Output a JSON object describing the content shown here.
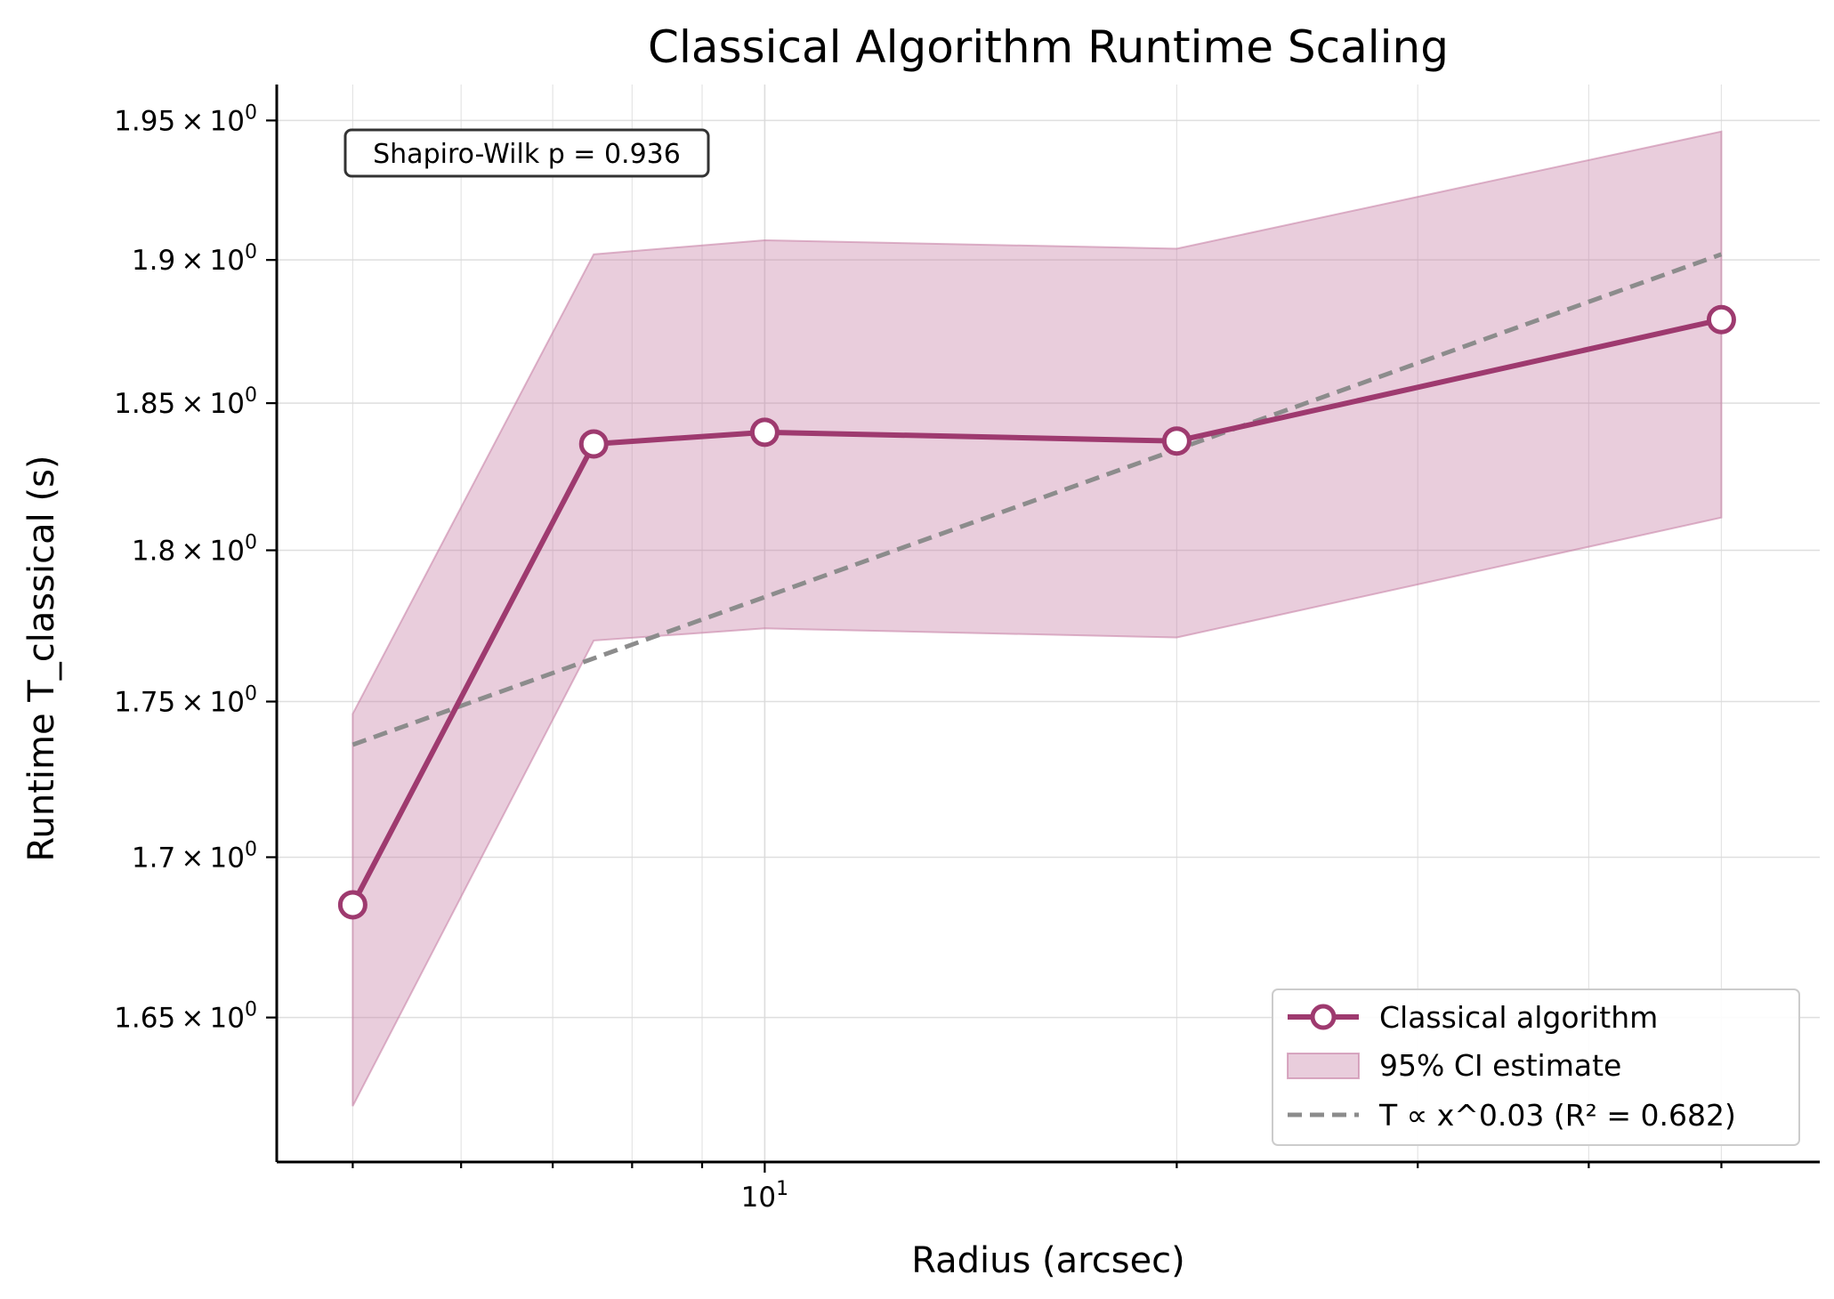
{
  "chart_data": {
    "type": "line",
    "title": "Classical Algorithm Runtime Scaling",
    "xlabel": "Radius (arcsec)",
    "ylabel": "Runtime T_classical (s)",
    "xscale": "log",
    "yscale": "log",
    "xlim": [
      4.4,
      59
    ],
    "ylim": [
      1.6062,
      1.9631
    ],
    "x_ticks": [
      {
        "value": 10,
        "base": "10",
        "exp": "1"
      }
    ],
    "y_ticks": [
      {
        "value": 1.65,
        "mant": "1.65"
      },
      {
        "value": 1.7,
        "mant": "1.7"
      },
      {
        "value": 1.75,
        "mant": "1.75"
      },
      {
        "value": 1.8,
        "mant": "1.8"
      },
      {
        "value": 1.85,
        "mant": "1.85"
      },
      {
        "value": 1.9,
        "mant": "1.9"
      },
      {
        "value": 1.95,
        "mant": "1.95"
      }
    ],
    "tick_suffix": {
      "times": "×",
      "base": "10",
      "exp": "0"
    },
    "grid": true,
    "legend_position": "bottom-right",
    "x": [
      5,
      7.5,
      10,
      20,
      50
    ],
    "series": [
      {
        "name": "Classical algorithm",
        "kind": "line",
        "color": "#9e3a6f",
        "values": [
          1.685,
          1.836,
          1.84,
          1.837,
          1.879
        ]
      },
      {
        "name": "95% CI estimate",
        "kind": "band",
        "color": "#c47ba2",
        "lower": [
          1.623,
          1.77,
          1.774,
          1.771,
          1.811
        ],
        "upper": [
          1.746,
          1.902,
          1.907,
          1.904,
          1.946
        ]
      },
      {
        "name": "T ∝ x^0.03 (R² = 0.682)",
        "kind": "fit",
        "color": "#8c8c8c",
        "x": [
          5,
          50
        ],
        "values": [
          1.736,
          1.902
        ]
      }
    ],
    "annotation": "Shapiro-Wilk p = 0.936"
  }
}
